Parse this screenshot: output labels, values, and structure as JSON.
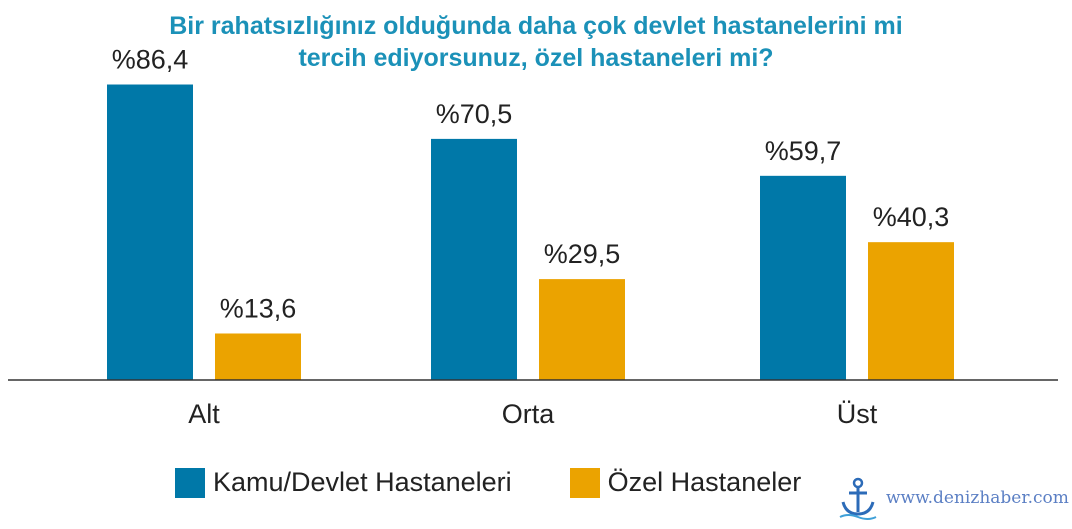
{
  "title": {
    "line1": "Bir rahatsızlığınız olduğunda daha çok devlet hastanelerini mi",
    "line2": "tercih ediyorsunuz, özel hastaneleri mi?"
  },
  "chart_data": {
    "type": "bar",
    "title": "Bir rahatsızlığınız olduğunda daha çok devlet hastanelerini mi tercih ediyorsunuz, özel hastaneleri mi?",
    "categories": [
      "Alt",
      "Orta",
      "Üst"
    ],
    "series": [
      {
        "name": "Kamu/Devlet Hastaneleri",
        "values": [
          86.4,
          70.5,
          59.7
        ],
        "labels": [
          "%86,4",
          "%70,5",
          "%59,7"
        ],
        "color": "#0078a8"
      },
      {
        "name": "Özel Hastaneler",
        "values": [
          13.6,
          29.5,
          40.3
        ],
        "labels": [
          "%13,6",
          "%29,5",
          "%40,3"
        ],
        "color": "#eba300"
      }
    ],
    "ylim": [
      0,
      100
    ],
    "grid": false,
    "legend": "bottom"
  },
  "watermark": {
    "text": "www.denizhaber.com",
    "icon": "anchor-icon"
  }
}
